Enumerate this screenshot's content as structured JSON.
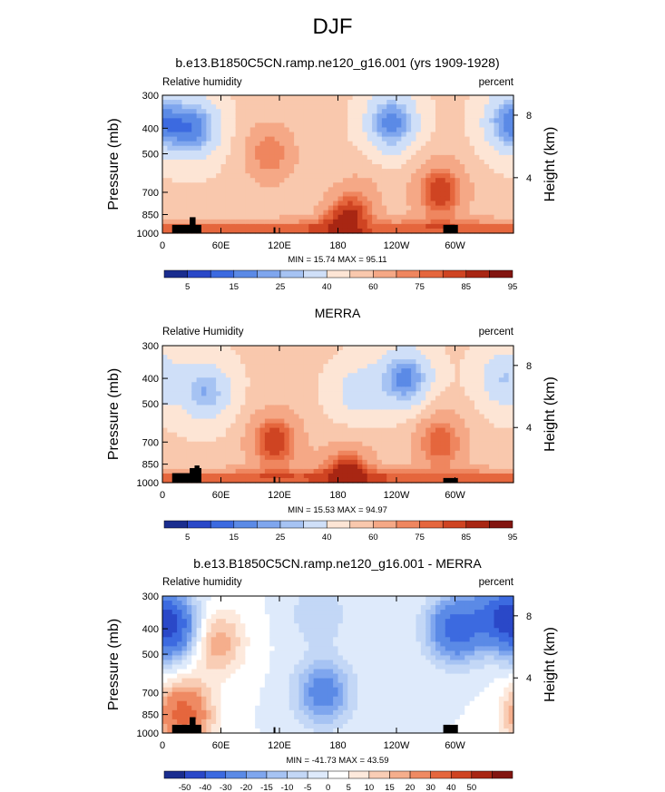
{
  "page_title": "DJF",
  "colors": {
    "rh_scale": [
      "#1a2d8f",
      "#2a48c8",
      "#3c6ae0",
      "#5b8ae6",
      "#7fa6ee",
      "#a6c3f3",
      "#cfdff8",
      "#fde5d5",
      "#f9c8ad",
      "#f5a886",
      "#ef865f",
      "#e5663d",
      "#cf4422",
      "#a82613",
      "#821510"
    ],
    "diff_scale": [
      "#1a2d8f",
      "#2a48c8",
      "#3c6ae0",
      "#5b8ae6",
      "#7fa6ee",
      "#a6c3f3",
      "#c3d7f6",
      "#deeafb",
      "#ffffff",
      "#fde9dc",
      "#f9cdb5",
      "#f5ae8c",
      "#ef8a63",
      "#e5663d",
      "#cf4422",
      "#a82613",
      "#821510"
    ],
    "topography": "#000000"
  },
  "panels": [
    {
      "title": "b.e13.B1850C5CN.ramp.ne120_g16.001 (yrs 1909-1928)",
      "left_label": "Relative humidity",
      "right_label": "percent",
      "stats": "MIN =  15.74   MAX =  95.11",
      "y_axis_label": "Pressure (mb)",
      "y2_axis_label": "Height (km)",
      "y_ticks": [
        "300",
        "400",
        "500",
        "700",
        "850",
        "1000"
      ],
      "y2_ticks": [
        "8",
        "4"
      ],
      "x_ticks": [
        "0",
        "60E",
        "120E",
        "180",
        "120W",
        "60W"
      ],
      "cbar_labels": [
        "5",
        "15",
        "25",
        "40",
        "60",
        "75",
        "85",
        "95"
      ]
    },
    {
      "title": "MERRA",
      "left_label": "Relative Humidity",
      "right_label": "percent",
      "stats": "MIN =  15.53   MAX =  94.97",
      "y_axis_label": "Pressure (mb)",
      "y2_axis_label": "Height (km)",
      "y_ticks": [
        "300",
        "400",
        "500",
        "700",
        "850",
        "1000"
      ],
      "y2_ticks": [
        "8",
        "4"
      ],
      "x_ticks": [
        "0",
        "60E",
        "120E",
        "180",
        "120W",
        "60W"
      ],
      "cbar_labels": [
        "5",
        "15",
        "25",
        "40",
        "60",
        "75",
        "85",
        "95"
      ]
    },
    {
      "title": "b.e13.B1850C5CN.ramp.ne120_g16.001 - MERRA",
      "left_label": "Relative humidity",
      "right_label": "percent",
      "stats": "MIN = -41.73   MAX =  43.59",
      "y_axis_label": "Pressure (mb)",
      "y2_axis_label": "Height (km)",
      "y_ticks": [
        "300",
        "400",
        "500",
        "700",
        "850",
        "1000"
      ],
      "y2_ticks": [
        "8",
        "4"
      ],
      "x_ticks": [
        "0",
        "60E",
        "120E",
        "180",
        "120W",
        "60W"
      ],
      "cbar_labels": [
        "-50",
        "-40",
        "-30",
        "-20",
        "-15",
        "-10",
        "-5",
        "0",
        "5",
        "10",
        "15",
        "20",
        "30",
        "40",
        "50"
      ]
    }
  ],
  "chart_data": [
    {
      "type": "heatmap",
      "title": "b.e13.B1850C5CN.ramp.ne120_g16.001 (yrs 1909-1928)",
      "variable": "Relative humidity",
      "units": "percent",
      "xlabel": "",
      "ylabel": "Pressure (mb)",
      "y2label": "Height (km)",
      "xlim": [
        0,
        360
      ],
      "ylim": [
        1000,
        300
      ],
      "x_ticks": [
        "0",
        "60E",
        "120E",
        "180",
        "120W",
        "60W"
      ],
      "y_ticks": [
        300,
        400,
        500,
        700,
        850,
        1000
      ],
      "color_levels": [
        5,
        10,
        15,
        20,
        25,
        30,
        40,
        50,
        60,
        70,
        75,
        80,
        85,
        90,
        95
      ],
      "min": 15.74,
      "max": 95.11,
      "features": [
        {
          "lon": 35,
          "p": 400,
          "rh": 20
        },
        {
          "lon": 110,
          "p": 500,
          "rh": 75
        },
        {
          "lon": 205,
          "p": 700,
          "rh": 60
        },
        {
          "lon": 235,
          "p": 380,
          "rh": 17
        },
        {
          "lon": 285,
          "p": 700,
          "rh": 85
        },
        {
          "lon": 355,
          "p": 380,
          "rh": 20
        },
        {
          "lon": 190,
          "p": 950,
          "rh": 92
        }
      ]
    },
    {
      "type": "heatmap",
      "title": "MERRA",
      "variable": "Relative Humidity",
      "units": "percent",
      "xlabel": "",
      "ylabel": "Pressure (mb)",
      "y2label": "Height (km)",
      "xlim": [
        0,
        360
      ],
      "ylim": [
        1000,
        300
      ],
      "x_ticks": [
        "0",
        "60E",
        "120E",
        "180",
        "120W",
        "60W"
      ],
      "y_ticks": [
        300,
        400,
        500,
        700,
        850,
        1000
      ],
      "color_levels": [
        5,
        10,
        15,
        20,
        25,
        30,
        40,
        50,
        60,
        70,
        75,
        80,
        85,
        90,
        95
      ],
      "min": 15.53,
      "max": 94.97,
      "features": [
        {
          "lon": 45,
          "p": 450,
          "rh": 25
        },
        {
          "lon": 115,
          "p": 700,
          "rh": 85
        },
        {
          "lon": 200,
          "p": 450,
          "rh": 35
        },
        {
          "lon": 250,
          "p": 400,
          "rh": 18
        },
        {
          "lon": 285,
          "p": 700,
          "rh": 80
        },
        {
          "lon": 350,
          "p": 400,
          "rh": 30
        },
        {
          "lon": 190,
          "p": 950,
          "rh": 90
        }
      ]
    },
    {
      "type": "heatmap",
      "title": "b.e13.B1850C5CN.ramp.ne120_g16.001 - MERRA",
      "variable": "Relative humidity",
      "units": "percent",
      "xlabel": "",
      "ylabel": "Pressure (mb)",
      "y2label": "Height (km)",
      "xlim": [
        0,
        360
      ],
      "ylim": [
        1000,
        300
      ],
      "x_ticks": [
        "0",
        "60E",
        "120E",
        "180",
        "120W",
        "60W"
      ],
      "y_ticks": [
        300,
        400,
        500,
        700,
        850,
        1000
      ],
      "color_levels": [
        -50,
        -40,
        -30,
        -20,
        -15,
        -10,
        -5,
        0,
        5,
        10,
        15,
        20,
        30,
        40,
        50
      ],
      "min": -41.73,
      "max": 43.59,
      "features": [
        {
          "lon": 12,
          "p": 400,
          "rh": -35
        },
        {
          "lon": 55,
          "p": 450,
          "rh": 20
        },
        {
          "lon": 160,
          "p": 350,
          "rh": -10
        },
        {
          "lon": 165,
          "p": 700,
          "rh": -25
        },
        {
          "lon": 300,
          "p": 400,
          "rh": -35
        },
        {
          "lon": 345,
          "p": 350,
          "rh": -30
        },
        {
          "lon": 22,
          "p": 850,
          "rh": 35
        }
      ]
    }
  ]
}
